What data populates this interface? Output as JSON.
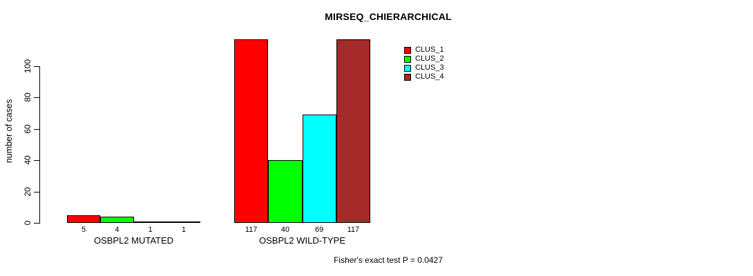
{
  "chart_data": {
    "type": "bar",
    "title": "MIRSEQ_CHIERARCHICAL",
    "ylabel": "number of cases",
    "xlabel": "",
    "footer": "Fisher's exact test P = 0.0427",
    "yticks": [
      0,
      20,
      40,
      60,
      80,
      100
    ],
    "ylim": [
      0,
      117
    ],
    "grid": false,
    "legend_position": "top-right",
    "series": [
      {
        "name": "CLUS_1",
        "color": "#FF0000"
      },
      {
        "name": "CLUS_2",
        "color": "#00FF00"
      },
      {
        "name": "CLUS_3",
        "color": "#00FFFF"
      },
      {
        "name": "CLUS_4",
        "color": "#A52A2A"
      }
    ],
    "groups": [
      {
        "label": "OSBPL2 MUTATED",
        "values": [
          5,
          4,
          1,
          1
        ]
      },
      {
        "label": "OSBPL2 WILD-TYPE",
        "values": [
          117,
          40,
          69,
          117
        ]
      }
    ],
    "colors": {
      "axis": "#000000",
      "text": "#000000",
      "background": "#FFFFFF"
    }
  }
}
